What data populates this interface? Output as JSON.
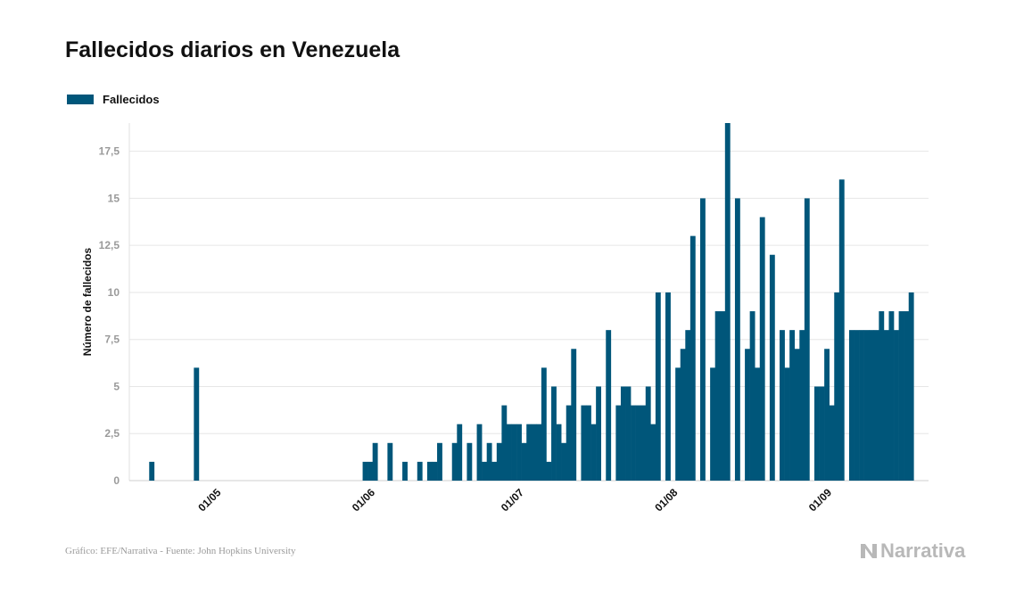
{
  "title": "Fallecidos diarios en Venezuela",
  "footer": "Gráfico: EFE/Narrativa - Fuente: John Hopkins University",
  "brand": "Narrativa",
  "colors": {
    "bar": "#00567a",
    "grid": "#e6e6e6",
    "axis_text": "#9a9a9a"
  },
  "chart_data": {
    "type": "bar",
    "title": "Fallecidos diarios en Venezuela",
    "xlabel": "",
    "ylabel": "Número de fallecidos",
    "ylim": [
      0,
      19
    ],
    "yticks": [
      0,
      2.5,
      5,
      7.5,
      10,
      12.5,
      15,
      17.5
    ],
    "ytick_labels": [
      "0",
      "2,5",
      "5",
      "7,5",
      "10",
      "12,5",
      "15",
      "17,5"
    ],
    "grid": true,
    "legend": {
      "position": "top-left",
      "entries": [
        "Fallecidos"
      ]
    },
    "x_start": "2020-04-14",
    "x_end": "2020-09-21",
    "xtick_dates": [
      "2020-05-01",
      "2020-06-01",
      "2020-07-01",
      "2020-08-01",
      "2020-09-01"
    ],
    "xtick_labels": [
      "01/05",
      "01/06",
      "01/07",
      "01/08",
      "01/09"
    ],
    "series": [
      {
        "name": "Fallecidos",
        "points": [
          [
            "2020-04-18",
            1
          ],
          [
            "2020-04-27",
            6
          ],
          [
            "2020-05-31",
            1
          ],
          [
            "2020-06-01",
            1
          ],
          [
            "2020-06-02",
            2
          ],
          [
            "2020-06-05",
            2
          ],
          [
            "2020-06-08",
            1
          ],
          [
            "2020-06-11",
            1
          ],
          [
            "2020-06-13",
            1
          ],
          [
            "2020-06-14",
            1
          ],
          [
            "2020-06-15",
            2
          ],
          [
            "2020-06-18",
            2
          ],
          [
            "2020-06-19",
            3
          ],
          [
            "2020-06-21",
            2
          ],
          [
            "2020-06-23",
            3
          ],
          [
            "2020-06-24",
            1
          ],
          [
            "2020-06-25",
            2
          ],
          [
            "2020-06-26",
            1
          ],
          [
            "2020-06-27",
            2
          ],
          [
            "2020-06-28",
            4
          ],
          [
            "2020-06-29",
            3
          ],
          [
            "2020-06-30",
            3
          ],
          [
            "2020-07-01",
            3
          ],
          [
            "2020-07-02",
            2
          ],
          [
            "2020-07-03",
            3
          ],
          [
            "2020-07-04",
            3
          ],
          [
            "2020-07-05",
            3
          ],
          [
            "2020-07-06",
            6
          ],
          [
            "2020-07-07",
            1
          ],
          [
            "2020-07-08",
            5
          ],
          [
            "2020-07-09",
            3
          ],
          [
            "2020-07-10",
            2
          ],
          [
            "2020-07-11",
            4
          ],
          [
            "2020-07-12",
            7
          ],
          [
            "2020-07-14",
            4
          ],
          [
            "2020-07-15",
            4
          ],
          [
            "2020-07-16",
            3
          ],
          [
            "2020-07-17",
            5
          ],
          [
            "2020-07-19",
            8
          ],
          [
            "2020-07-21",
            4
          ],
          [
            "2020-07-22",
            5
          ],
          [
            "2020-07-23",
            5
          ],
          [
            "2020-07-24",
            4
          ],
          [
            "2020-07-25",
            4
          ],
          [
            "2020-07-26",
            4
          ],
          [
            "2020-07-27",
            5
          ],
          [
            "2020-07-28",
            3
          ],
          [
            "2020-07-29",
            10
          ],
          [
            "2020-07-31",
            10
          ],
          [
            "2020-08-02",
            6
          ],
          [
            "2020-08-03",
            7
          ],
          [
            "2020-08-04",
            8
          ],
          [
            "2020-08-05",
            13
          ],
          [
            "2020-08-07",
            15
          ],
          [
            "2020-08-09",
            6
          ],
          [
            "2020-08-10",
            9
          ],
          [
            "2020-08-11",
            9
          ],
          [
            "2020-08-12",
            19
          ],
          [
            "2020-08-14",
            15
          ],
          [
            "2020-08-16",
            7
          ],
          [
            "2020-08-17",
            9
          ],
          [
            "2020-08-18",
            6
          ],
          [
            "2020-08-19",
            14
          ],
          [
            "2020-08-21",
            12
          ],
          [
            "2020-08-23",
            8
          ],
          [
            "2020-08-24",
            6
          ],
          [
            "2020-08-25",
            8
          ],
          [
            "2020-08-26",
            7
          ],
          [
            "2020-08-27",
            8
          ],
          [
            "2020-08-28",
            15
          ],
          [
            "2020-08-30",
            5
          ],
          [
            "2020-08-31",
            5
          ],
          [
            "2020-09-01",
            7
          ],
          [
            "2020-09-02",
            4
          ],
          [
            "2020-09-03",
            10
          ],
          [
            "2020-09-04",
            16
          ],
          [
            "2020-09-06",
            8
          ],
          [
            "2020-09-07",
            8
          ],
          [
            "2020-09-08",
            8
          ],
          [
            "2020-09-09",
            8
          ],
          [
            "2020-09-10",
            8
          ],
          [
            "2020-09-11",
            8
          ],
          [
            "2020-09-12",
            9
          ],
          [
            "2020-09-13",
            8
          ],
          [
            "2020-09-14",
            9
          ],
          [
            "2020-09-15",
            8
          ],
          [
            "2020-09-16",
            9
          ],
          [
            "2020-09-17",
            9
          ],
          [
            "2020-09-18",
            10
          ]
        ]
      }
    ]
  }
}
